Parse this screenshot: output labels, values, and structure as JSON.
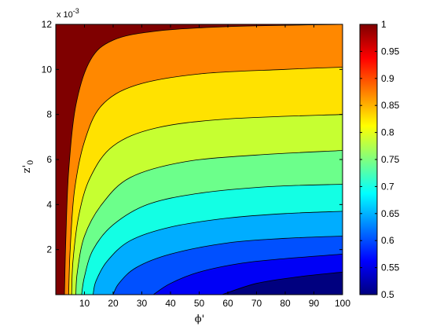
{
  "chart_data": {
    "type": "contourf",
    "xlabel": "ϕ'",
    "ylabel_base": "z'",
    "ylabel_sub": "0",
    "y_scale_note_base": "x 10",
    "y_scale_note_exp": "-3",
    "xlim": [
      0,
      100
    ],
    "ylim": [
      0,
      0.012
    ],
    "x_ticks": [
      10,
      20,
      30,
      40,
      50,
      60,
      70,
      80,
      90,
      100
    ],
    "x_tick_labels": [
      "10",
      "20",
      "30",
      "40",
      "50",
      "60",
      "70",
      "80",
      "90",
      "100"
    ],
    "y_ticks": [
      0.002,
      0.004,
      0.006,
      0.008,
      0.01,
      0.012
    ],
    "y_tick_labels": [
      "2",
      "4",
      "6",
      "8",
      "10",
      "12"
    ],
    "colorbar": {
      "clim": [
        0.5,
        1.0
      ],
      "ticks": [
        0.5,
        0.55,
        0.6,
        0.65,
        0.7,
        0.75,
        0.8,
        0.85,
        0.9,
        0.95,
        1.0
      ],
      "tick_labels": [
        "0.5",
        "0.55",
        "0.6",
        "0.65",
        "0.7",
        "0.75",
        "0.8",
        "0.85",
        "0.9",
        "0.95",
        "1"
      ],
      "colormap": "jet"
    },
    "contour_levels": [
      0.55,
      0.6,
      0.65,
      0.7,
      0.75,
      0.8,
      0.85,
      0.9,
      0.95
    ],
    "region_colors": [
      "#00007f",
      "#0000f6",
      "#0050ff",
      "#00adff",
      "#13ffe4",
      "#6cff8b",
      "#c6ff31",
      "#ffe200",
      "#ff8800",
      "#ff2f00",
      "#7f0000"
    ],
    "contours": [
      {
        "level": 0.55,
        "points": [
          [
            58,
            0
          ],
          [
            70,
            0.0005
          ],
          [
            85,
            0.0008
          ],
          [
            100,
            0.001
          ]
        ]
      },
      {
        "level": 0.6,
        "points": [
          [
            34,
            0
          ],
          [
            40,
            0.0005
          ],
          [
            50,
            0.001
          ],
          [
            65,
            0.0014
          ],
          [
            80,
            0.0016
          ],
          [
            100,
            0.0018
          ]
        ]
      },
      {
        "level": 0.65,
        "points": [
          [
            20,
            0
          ],
          [
            22,
            0.0005
          ],
          [
            28,
            0.0012
          ],
          [
            40,
            0.0018
          ],
          [
            60,
            0.0023
          ],
          [
            80,
            0.0025
          ],
          [
            100,
            0.0026
          ]
        ]
      },
      {
        "level": 0.7,
        "points": [
          [
            13,
            0
          ],
          [
            14,
            0.0006
          ],
          [
            18,
            0.0015
          ],
          [
            26,
            0.0024
          ],
          [
            40,
            0.003
          ],
          [
            60,
            0.0034
          ],
          [
            80,
            0.0036
          ],
          [
            100,
            0.0037
          ]
        ]
      },
      {
        "level": 0.75,
        "points": [
          [
            9,
            0
          ],
          [
            10,
            0.0008
          ],
          [
            13,
            0.002
          ],
          [
            20,
            0.0031
          ],
          [
            32,
            0.004
          ],
          [
            50,
            0.0045
          ],
          [
            75,
            0.0048
          ],
          [
            100,
            0.0049
          ]
        ]
      },
      {
        "level": 0.8,
        "points": [
          [
            7,
            0
          ],
          [
            7.5,
            0.001
          ],
          [
            10,
            0.0026
          ],
          [
            16,
            0.004
          ],
          [
            26,
            0.0052
          ],
          [
            45,
            0.0059
          ],
          [
            70,
            0.0062
          ],
          [
            100,
            0.0064
          ]
        ]
      },
      {
        "level": 0.85,
        "points": [
          [
            5.5,
            0
          ],
          [
            6,
            0.0015
          ],
          [
            8,
            0.0035
          ],
          [
            12,
            0.0052
          ],
          [
            20,
            0.0066
          ],
          [
            35,
            0.0074
          ],
          [
            60,
            0.0078
          ],
          [
            100,
            0.008
          ]
        ]
      },
      {
        "level": 0.9,
        "points": [
          [
            4.5,
            0
          ],
          [
            5,
            0.002
          ],
          [
            6.5,
            0.0046
          ],
          [
            10,
            0.0068
          ],
          [
            16,
            0.0084
          ],
          [
            28,
            0.0093
          ],
          [
            50,
            0.0098
          ],
          [
            80,
            0.01
          ],
          [
            100,
            0.0101
          ]
        ]
      },
      {
        "level": 0.95,
        "points": [
          [
            3,
            0
          ],
          [
            3.5,
            0.0025
          ],
          [
            4.5,
            0.0055
          ],
          [
            7,
            0.0084
          ],
          [
            12,
            0.0104
          ],
          [
            20,
            0.0113
          ],
          [
            35,
            0.0117
          ],
          [
            60,
            0.0119
          ],
          [
            100,
            0.012
          ]
        ]
      }
    ]
  }
}
